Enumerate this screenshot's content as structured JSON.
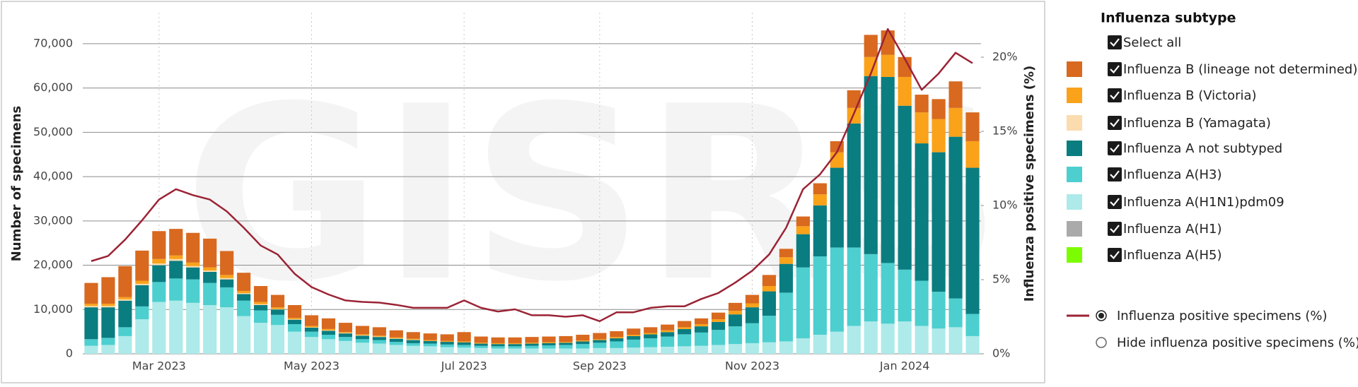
{
  "chart_data": {
    "type": "bar",
    "watermark": "GISRS",
    "y_label": "Number of specimens",
    "y2_label": "Influenza positive specimens (%)",
    "legend_title": "Influenza subtype",
    "select_all": "Select all",
    "hide_line_label": "Hide influenza positive specimens (%)",
    "stacked": true,
    "grid": true,
    "categories": [
      null,
      null,
      null,
      null,
      "Mar 2023",
      null,
      null,
      null,
      null,
      null,
      null,
      null,
      null,
      "May 2023",
      null,
      null,
      null,
      null,
      null,
      null,
      null,
      null,
      "Jul 2023",
      null,
      null,
      null,
      null,
      null,
      null,
      null,
      "Sep 2023",
      null,
      null,
      null,
      null,
      null,
      null,
      null,
      null,
      "Nov 2023",
      null,
      null,
      null,
      null,
      null,
      null,
      null,
      null,
      "Jan 2024",
      null,
      null,
      null,
      null
    ],
    "ylim": [
      0,
      77000
    ],
    "yticks": [
      0,
      {
        "value": 10000,
        "label": "10,000"
      },
      {
        "value": 20000,
        "label": "20,000"
      },
      {
        "value": 30000,
        "label": "30,000"
      },
      {
        "value": 40000,
        "label": "40,000"
      },
      {
        "value": 50000,
        "label": "50,000"
      },
      {
        "value": 60000,
        "label": "60,000"
      },
      {
        "value": 70000,
        "label": "70,000"
      }
    ],
    "y2lim": [
      0,
      23
    ],
    "y2ticks": [
      {
        "value": 0,
        "label": "0%"
      },
      {
        "value": 5,
        "label": "5%"
      },
      {
        "value": 10,
        "label": "10%"
      },
      {
        "value": 15,
        "label": "15%"
      },
      {
        "value": 20,
        "label": "20%"
      }
    ],
    "series": [
      {
        "name": "Influenza B (lineage not determined)",
        "color": "#d8691f",
        "values": [
          4700,
          6000,
          7000,
          6800,
          6300,
          6000,
          6700,
          6500,
          5400,
          4100,
          3600,
          2800,
          2900,
          2400,
          2400,
          2100,
          1900,
          1900,
          1600,
          1500,
          1500,
          1500,
          2100,
          1400,
          1300,
          1300,
          1300,
          1300,
          1300,
          1300,
          1400,
          1300,
          1400,
          1300,
          1300,
          1400,
          1300,
          1500,
          1800,
          1900,
          2500,
          1900,
          2200,
          2500,
          2500,
          4000,
          5000,
          5500,
          4500,
          4000,
          4500,
          6000,
          6500
        ]
      },
      {
        "name": "Influenza B (Victoria)",
        "color": "#f9a21a",
        "values": [
          500,
          500,
          500,
          700,
          1000,
          800,
          800,
          700,
          700,
          500,
          500,
          400,
          300,
          300,
          300,
          200,
          200,
          200,
          200,
          200,
          200,
          200,
          200,
          200,
          200,
          200,
          200,
          200,
          200,
          200,
          200,
          300,
          300,
          300,
          400,
          400,
          500,
          600,
          800,
          900,
          1200,
          1500,
          1800,
          2500,
          3500,
          3500,
          4300,
          5000,
          6500,
          7000,
          7500,
          6500,
          6000
        ]
      },
      {
        "name": "Influenza B (Yamagata)",
        "color": "#fbdcae",
        "values": [
          300,
          300,
          300,
          300,
          400,
          400,
          300,
          300,
          300,
          200,
          200,
          100,
          100,
          100,
          100,
          100,
          100,
          100,
          100,
          100,
          0,
          0,
          0,
          0,
          0,
          0,
          0,
          0,
          0,
          0,
          0,
          0,
          0,
          0,
          0,
          0,
          0,
          0,
          0,
          0,
          0,
          0,
          0,
          0,
          0,
          0,
          0,
          0,
          0,
          0,
          0,
          0,
          0
        ]
      },
      {
        "name": "Influenza A not subtyped",
        "color": "#0a7d80",
        "values": [
          7200,
          6900,
          6000,
          4800,
          3800,
          4000,
          2700,
          2500,
          1800,
          1500,
          1200,
          1200,
          1000,
          900,
          900,
          800,
          800,
          700,
          700,
          700,
          600,
          600,
          600,
          500,
          500,
          500,
          500,
          500,
          500,
          600,
          600,
          700,
          800,
          900,
          1000,
          1200,
          1400,
          1800,
          2700,
          3600,
          5500,
          6500,
          7500,
          11500,
          18000,
          28000,
          40200,
          42000,
          37000,
          31000,
          31500,
          36500,
          33000
        ]
      },
      {
        "name": "Influenza A(H3)",
        "color": "#4dcfcf",
        "values": [
          1500,
          1600,
          2000,
          2900,
          4500,
          5000,
          5300,
          5000,
          4500,
          3500,
          2800,
          2300,
          1700,
          1200,
          1000,
          900,
          800,
          800,
          700,
          600,
          600,
          600,
          600,
          500,
          500,
          500,
          600,
          700,
          800,
          1000,
          1200,
          1500,
          1800,
          2000,
          2300,
          2700,
          3000,
          3400,
          4000,
          4500,
          6000,
          11000,
          16000,
          17700,
          19000,
          17700,
          15200,
          13700,
          11700,
          10200,
          8300,
          6500,
          5000
        ]
      },
      {
        "name": "Influenza A(H1N1)pdm09",
        "color": "#aeeaea",
        "values": [
          1800,
          2000,
          4000,
          7800,
          11700,
          12000,
          11500,
          11000,
          10500,
          8500,
          7000,
          6500,
          5000,
          3800,
          3300,
          2900,
          2500,
          2300,
          2000,
          1800,
          1700,
          1500,
          1400,
          1300,
          1200,
          1200,
          1200,
          1200,
          1200,
          1200,
          1300,
          1300,
          1400,
          1500,
          1600,
          1700,
          1800,
          2000,
          2200,
          2400,
          2600,
          2800,
          3500,
          4300,
          5000,
          6300,
          7300,
          6800,
          7300,
          6300,
          5700,
          6000,
          4000
        ]
      },
      {
        "name": "Influenza A(H1)",
        "color": "#aaaaaa",
        "values": [
          0,
          0,
          0,
          0,
          0,
          0,
          0,
          0,
          0,
          0,
          0,
          0,
          0,
          0,
          0,
          0,
          0,
          0,
          0,
          0,
          0,
          0,
          0,
          0,
          0,
          0,
          0,
          0,
          0,
          0,
          0,
          0,
          0,
          0,
          0,
          0,
          0,
          0,
          0,
          0,
          0,
          0,
          0,
          0,
          0,
          0,
          0,
          0,
          0,
          0,
          0,
          0,
          0
        ]
      },
      {
        "name": "Influenza A(H5)",
        "color": "#7cfc00",
        "values": [
          0,
          0,
          0,
          0,
          0,
          0,
          0,
          0,
          0,
          0,
          0,
          0,
          0,
          0,
          0,
          0,
          0,
          0,
          0,
          0,
          0,
          0,
          0,
          0,
          0,
          0,
          0,
          0,
          0,
          0,
          0,
          0,
          0,
          0,
          0,
          0,
          0,
          0,
          0,
          0,
          0,
          0,
          0,
          0,
          0,
          0,
          0,
          0,
          0,
          0,
          0,
          0,
          0
        ]
      },
      {
        "name": "Influenza positive specimens (%)",
        "color": "#9b2335",
        "axis": "y2",
        "values": [
          6.25,
          6.6,
          7.7,
          9.0,
          10.4,
          11.1,
          10.7,
          10.4,
          9.6,
          8.5,
          7.3,
          6.7,
          5.4,
          4.5,
          4.0,
          3.6,
          3.5,
          3.45,
          3.3,
          3.1,
          3.1,
          3.1,
          3.6,
          3.1,
          2.85,
          3.0,
          2.6,
          2.6,
          2.5,
          2.6,
          2.2,
          2.8,
          2.8,
          3.1,
          3.2,
          3.2,
          3.7,
          4.1,
          4.8,
          5.6,
          6.7,
          8.5,
          11.1,
          12.1,
          13.6,
          16.2,
          18.9,
          21.9,
          19.9,
          17.8,
          18.9,
          20.3,
          19.6
        ]
      }
    ]
  }
}
